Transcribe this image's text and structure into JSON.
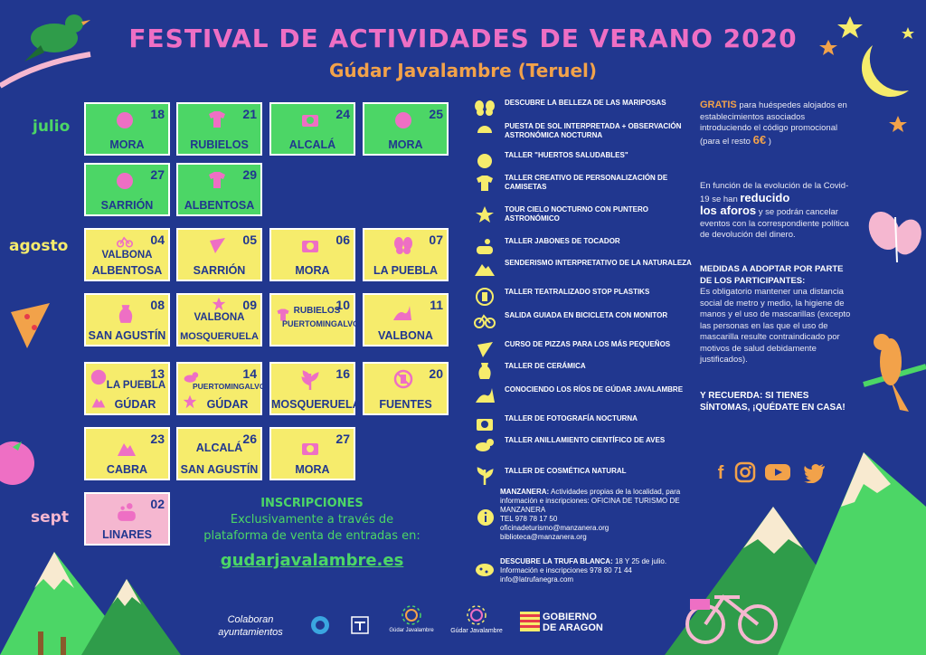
{
  "header": {
    "title": "FESTIVAL DE ACTIVIDADES  DE VERANO 2020",
    "subtitle": "Gúdar Javalambre (Teruel)"
  },
  "months": {
    "julio": "julio",
    "agosto": "agosto",
    "sept": "sept"
  },
  "events": [
    {
      "day": "18",
      "loc": "MORA"
    },
    {
      "day": "21",
      "loc": "RUBIELOS"
    },
    {
      "day": "24",
      "loc": "ALCALÁ"
    },
    {
      "day": "25",
      "loc": "MORA"
    },
    {
      "day": "27",
      "loc": "SARRIÓN"
    },
    {
      "day": "29",
      "loc": "ALBENTOSA"
    },
    {
      "day": "04",
      "loc": "ALBENTOSA",
      "loc2": "VALBONA"
    },
    {
      "day": "05",
      "loc": "SARRIÓN"
    },
    {
      "day": "06",
      "loc": "MORA"
    },
    {
      "day": "07",
      "loc": "LA PUEBLA"
    },
    {
      "day": "08",
      "loc": "SAN AGUSTÍN"
    },
    {
      "day": "09",
      "loc": "MOSQUERUELA",
      "loc2": "VALBONA"
    },
    {
      "day": "10",
      "loc": "PUERTOMINGALVO",
      "loc2": "RUBIELOS"
    },
    {
      "day": "11",
      "loc": "VALBONA"
    },
    {
      "day": "13",
      "loc": "GÚDAR",
      "loc2": "LA PUEBLA"
    },
    {
      "day": "14",
      "loc": "GÚDAR",
      "loc2": "PUERTOMINGALVO"
    },
    {
      "day": "16",
      "loc": "MOSQUERUELA"
    },
    {
      "day": "20",
      "loc": "FUENTES"
    },
    {
      "day": "23",
      "loc": "CABRA"
    },
    {
      "day": "26",
      "loc": "SAN AGUSTÍN",
      "loc2": "ALCALÁ"
    },
    {
      "day": "27",
      "loc": "MORA"
    },
    {
      "day": "02",
      "loc": "LINARES"
    }
  ],
  "activities": [
    {
      "icon": "butterfly-icon",
      "text": "DESCUBRE LA BELLEZA DE LAS MARIPOSAS"
    },
    {
      "icon": "sunset-icon",
      "text": "PUESTA DE SOL INTERPRETADA + OBSERVACIÓN ASTRONÓMICA NOCTURNA"
    },
    {
      "icon": "tomato-icon",
      "text": "TALLER \"HUERTOS SALUDABLES\""
    },
    {
      "icon": "tshirt-icon",
      "text": "TALLER CREATIVO DE PERSONALIZACIÓN DE CAMISETAS"
    },
    {
      "icon": "star-icon",
      "text": "TOUR CIELO NOCTURNO CON PUNTERO ASTRONÓMICO"
    },
    {
      "icon": "soap-icon",
      "text": "TALLER JABONES DE TOCADOR"
    },
    {
      "icon": "mountain-icon",
      "text": "SENDERISMO INTERPRETATIVO DE LA NATURALEZA"
    },
    {
      "icon": "no-plastic-icon",
      "text": "TALLER TEATRALIZADO STOP PLASTIKS"
    },
    {
      "icon": "bicycle-icon",
      "text": "SALIDA GUIADA EN BICICLETA CON MONITOR"
    },
    {
      "icon": "pizza-icon",
      "text": "CURSO DE PIZZAS PARA LOS MÁS PEQUEÑOS"
    },
    {
      "icon": "vase-icon",
      "text": "TALLER DE CERÁMICA"
    },
    {
      "icon": "river-icon",
      "text": "CONOCIENDO LOS RÍOS DE GÚDAR JAVALAMBRE"
    },
    {
      "icon": "camera-icon",
      "text": "TALLER DE FOTOGRAFÍA NOCTURNA"
    },
    {
      "icon": "bird-icon",
      "text": "TALLER ANILLAMIENTO CIENTÍFICO DE AVES"
    },
    {
      "icon": "leaf-icon",
      "text": "TALLER DE COSMÉTICA NATURAL"
    }
  ],
  "right": {
    "gratis": "GRATIS",
    "gratis_text": " para huéspedes alojados en establecimientos asociados introduciendo el código promocional (para el resto ",
    "price": "6€",
    "gratis_end": " )",
    "covid_a": "En función de la evolución de la Covid-19 se han ",
    "covid_b": "reducido",
    "covid_c": "los aforos",
    "covid_d": " y se podrán cancelar eventos con la correspondiente política de devolución del dinero.",
    "medidas_title": "MEDIDAS A ADOPTAR POR PARTE DE LOS PARTICIPANTES:",
    "medidas_text": "Es obligatorio mantener una distancia social de metro y medio, la higiene de manos y el uso de mascarillas (excepto las personas en las que el uso de mascarilla resulte contraindicado por motivos de salud debidamente justificados).",
    "recuerda": "Y RECUERDA: SI TIENES SÍNTOMAS, ¡QUÉDATE EN CASA!"
  },
  "inscripciones": {
    "title": "INSCRIPCIONES",
    "line1": "Exclusivamente a través de",
    "line2": "plataforma de venta de entradas en:",
    "url": "gudarjavalambre.es"
  },
  "manzanera": {
    "label": "MANZANERA:",
    "text": " Actividades propias de la localidad, para información e inscripciones:  OFICINA DE TURISMO DE MANZANERA",
    "tel": "TEL 978 78 17 50",
    "email1": "oficinadeturismo@manzanera.org",
    "email2": "biblioteca@manzanera.org"
  },
  "trufa": {
    "label": "DESCUBRE LA TRUFA BLANCA:",
    "text": " 18 Y 25 de julio. Información e inscripciones 978 80 71 44",
    "email": "info@latrufanegra.com"
  },
  "footer": {
    "colaboran1": "Colaboran",
    "colaboran2": "ayuntamientos",
    "logo1": "Gúdar Javalambre",
    "logo2": "Gúdar Javalambre",
    "gobierno1": "GOBIERNO",
    "gobierno2": "DE ARAGON"
  },
  "social": {
    "facebook": "f"
  },
  "colors": {
    "background": "#21378f",
    "green": "#4cd666",
    "yellow": "#f6ec6c",
    "pink": "#ee6fc4",
    "orange": "#f2a24a",
    "lightpink": "#f5b7d0"
  }
}
